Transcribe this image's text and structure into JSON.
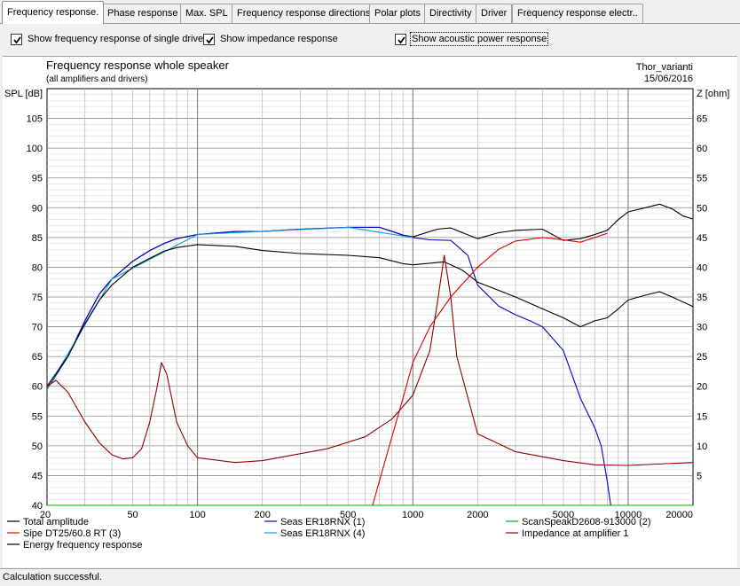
{
  "tabs": [
    {
      "label": "Frequency response.",
      "active": true
    },
    {
      "label": "Phase response",
      "active": false
    },
    {
      "label": "Max. SPL",
      "active": false
    },
    {
      "label": "Frequency response directions",
      "active": false
    },
    {
      "label": "Polar plots",
      "active": false
    },
    {
      "label": "Directivity",
      "active": false
    },
    {
      "label": "Driver",
      "active": false
    },
    {
      "label": "Frequency response electr..",
      "active": false
    }
  ],
  "options": {
    "single_drive": {
      "label": "Show frequency response of single drive",
      "checked": true
    },
    "impedance": {
      "label": "Show impedance response",
      "checked": true
    },
    "acoustic_power": {
      "label": "Show acoustic power response",
      "checked": true
    }
  },
  "status": {
    "text": "Calculation successful."
  },
  "chart_data": {
    "type": "line",
    "title": "Frequency response whole speaker",
    "subtitle": "(all amplifiers and drivers)",
    "project": "Thor_varianti",
    "date": "15/06/2016",
    "ylabel": "SPL [dB]",
    "y2label": "Z [ohm]",
    "x_scale": "log",
    "xlim": [
      20,
      20000
    ],
    "ylim": [
      40,
      110
    ],
    "y2lim": [
      0,
      70
    ],
    "x_tick_labels": [
      "20",
      "50",
      "100",
      "200",
      "500",
      "1000",
      "2000",
      "5000",
      "10000",
      "20000"
    ],
    "y_ticks": [
      45,
      50,
      55,
      60,
      65,
      70,
      75,
      80,
      85,
      90,
      95,
      100,
      105
    ],
    "y2_ticks": [
      5,
      10,
      15,
      20,
      25,
      30,
      35,
      40,
      45,
      50,
      55,
      60,
      65
    ],
    "grid": true,
    "legend_position": "bottom",
    "series": [
      {
        "name": "Total amplitude",
        "color": "#000000",
        "axis": "left",
        "points": [
          [
            20,
            59.5
          ],
          [
            25,
            65
          ],
          [
            30,
            71
          ],
          [
            35,
            75.5
          ],
          [
            40,
            78
          ],
          [
            50,
            81
          ],
          [
            60,
            82.8
          ],
          [
            70,
            84
          ],
          [
            80,
            84.8
          ],
          [
            100,
            85.5
          ],
          [
            150,
            86
          ],
          [
            200,
            86
          ],
          [
            300,
            86.4
          ],
          [
            500,
            86.7
          ],
          [
            700,
            86.7
          ],
          [
            900,
            85.4
          ],
          [
            1000,
            85.1
          ],
          [
            1300,
            86.4
          ],
          [
            1500,
            86.6
          ],
          [
            2000,
            84.8
          ],
          [
            2500,
            85.8
          ],
          [
            3000,
            86.2
          ],
          [
            4000,
            86.4
          ],
          [
            5000,
            84.5
          ],
          [
            6000,
            84.8
          ],
          [
            7000,
            85.5
          ],
          [
            8000,
            86.2
          ],
          [
            9000,
            88
          ],
          [
            10000,
            89.3
          ],
          [
            12000,
            90
          ],
          [
            14000,
            90.6
          ],
          [
            16000,
            89.8
          ],
          [
            18000,
            88.6
          ],
          [
            20000,
            88.1
          ]
        ]
      },
      {
        "name": "Seas ER18RNX (1)",
        "color": "#0000cc",
        "axis": "left",
        "points": [
          [
            20,
            59.5
          ],
          [
            25,
            65
          ],
          [
            30,
            71
          ],
          [
            35,
            75.5
          ],
          [
            40,
            78
          ],
          [
            50,
            81
          ],
          [
            60,
            82.8
          ],
          [
            70,
            84
          ],
          [
            80,
            84.8
          ],
          [
            100,
            85.5
          ],
          [
            150,
            86
          ],
          [
            200,
            86
          ],
          [
            300,
            86.4
          ],
          [
            500,
            86.7
          ],
          [
            700,
            86.7
          ],
          [
            900,
            85.4
          ],
          [
            1000,
            85
          ],
          [
            1200,
            84.6
          ],
          [
            1500,
            84.5
          ],
          [
            1800,
            82
          ],
          [
            2000,
            77
          ],
          [
            2500,
            73.5
          ],
          [
            3000,
            72
          ],
          [
            3500,
            71
          ],
          [
            4000,
            70
          ],
          [
            5000,
            66
          ],
          [
            6000,
            58
          ],
          [
            7000,
            53
          ],
          [
            7500,
            50
          ],
          [
            8000,
            44
          ],
          [
            8300,
            40
          ]
        ]
      },
      {
        "name": "Seas ER18RNX (4)",
        "color": "#00a0e0",
        "axis": "left",
        "points": [
          [
            20,
            59.5
          ],
          [
            40,
            78
          ],
          [
            100,
            85.5
          ],
          [
            500,
            86.7
          ],
          [
            1000,
            85
          ]
        ]
      },
      {
        "name": "ScanSpeakD2608-913000 (2)",
        "color": "#00b000",
        "axis": "left",
        "points": [
          [
            20,
            40
          ],
          [
            20000,
            40
          ]
        ]
      },
      {
        "name": "Sipe DT25/60.8 RT (3)",
        "color": "#e00000",
        "axis": "left",
        "points": [
          [
            650,
            40
          ],
          [
            750,
            48
          ],
          [
            900,
            58
          ],
          [
            1000,
            64
          ],
          [
            1200,
            70
          ],
          [
            1500,
            75
          ],
          [
            2000,
            80
          ],
          [
            2500,
            83
          ],
          [
            3000,
            84.4
          ],
          [
            4000,
            85
          ],
          [
            5000,
            84.6
          ],
          [
            6000,
            84.2
          ],
          [
            7000,
            85
          ],
          [
            8000,
            85.7
          ]
        ]
      },
      {
        "name": "Energy frequency response",
        "color": "#000000",
        "axis": "left",
        "points": [
          [
            20,
            60
          ],
          [
            25,
            65
          ],
          [
            30,
            70.5
          ],
          [
            35,
            74.5
          ],
          [
            40,
            77
          ],
          [
            50,
            80
          ],
          [
            60,
            81.5
          ],
          [
            70,
            82.7
          ],
          [
            80,
            83.3
          ],
          [
            100,
            83.8
          ],
          [
            150,
            83.5
          ],
          [
            200,
            82.8
          ],
          [
            300,
            82.3
          ],
          [
            500,
            82
          ],
          [
            700,
            81.6
          ],
          [
            900,
            80.6
          ],
          [
            1000,
            80.4
          ],
          [
            1400,
            80.9
          ],
          [
            1700,
            79.5
          ],
          [
            2000,
            77.5
          ],
          [
            3000,
            75
          ],
          [
            4000,
            73
          ],
          [
            5000,
            71.5
          ],
          [
            6000,
            70
          ],
          [
            7000,
            71
          ],
          [
            8000,
            71.5
          ],
          [
            9000,
            73
          ],
          [
            10000,
            74.5
          ],
          [
            12000,
            75.3
          ],
          [
            14000,
            75.9
          ],
          [
            16000,
            75
          ],
          [
            20000,
            73.4
          ]
        ]
      },
      {
        "name": "Impedance at amplifier 1",
        "color": "#900000",
        "axis": "right",
        "points": [
          [
            20,
            20
          ],
          [
            22,
            21
          ],
          [
            25,
            19
          ],
          [
            30,
            14
          ],
          [
            35,
            10.5
          ],
          [
            40,
            8.5
          ],
          [
            45,
            7.8
          ],
          [
            50,
            8
          ],
          [
            55,
            9.5
          ],
          [
            60,
            14
          ],
          [
            65,
            20
          ],
          [
            68,
            24
          ],
          [
            72,
            22
          ],
          [
            80,
            14
          ],
          [
            90,
            10
          ],
          [
            100,
            8
          ],
          [
            150,
            7.2
          ],
          [
            200,
            7.5
          ],
          [
            400,
            9.5
          ],
          [
            600,
            11.5
          ],
          [
            800,
            14.5
          ],
          [
            1000,
            18.5
          ],
          [
            1200,
            26
          ],
          [
            1300,
            34
          ],
          [
            1400,
            42
          ],
          [
            1500,
            35
          ],
          [
            1600,
            25
          ],
          [
            2000,
            12
          ],
          [
            3000,
            9
          ],
          [
            5000,
            7.5
          ],
          [
            7000,
            6.8
          ],
          [
            10000,
            6.7
          ],
          [
            15000,
            7
          ],
          [
            20000,
            7.2
          ]
        ]
      }
    ]
  }
}
